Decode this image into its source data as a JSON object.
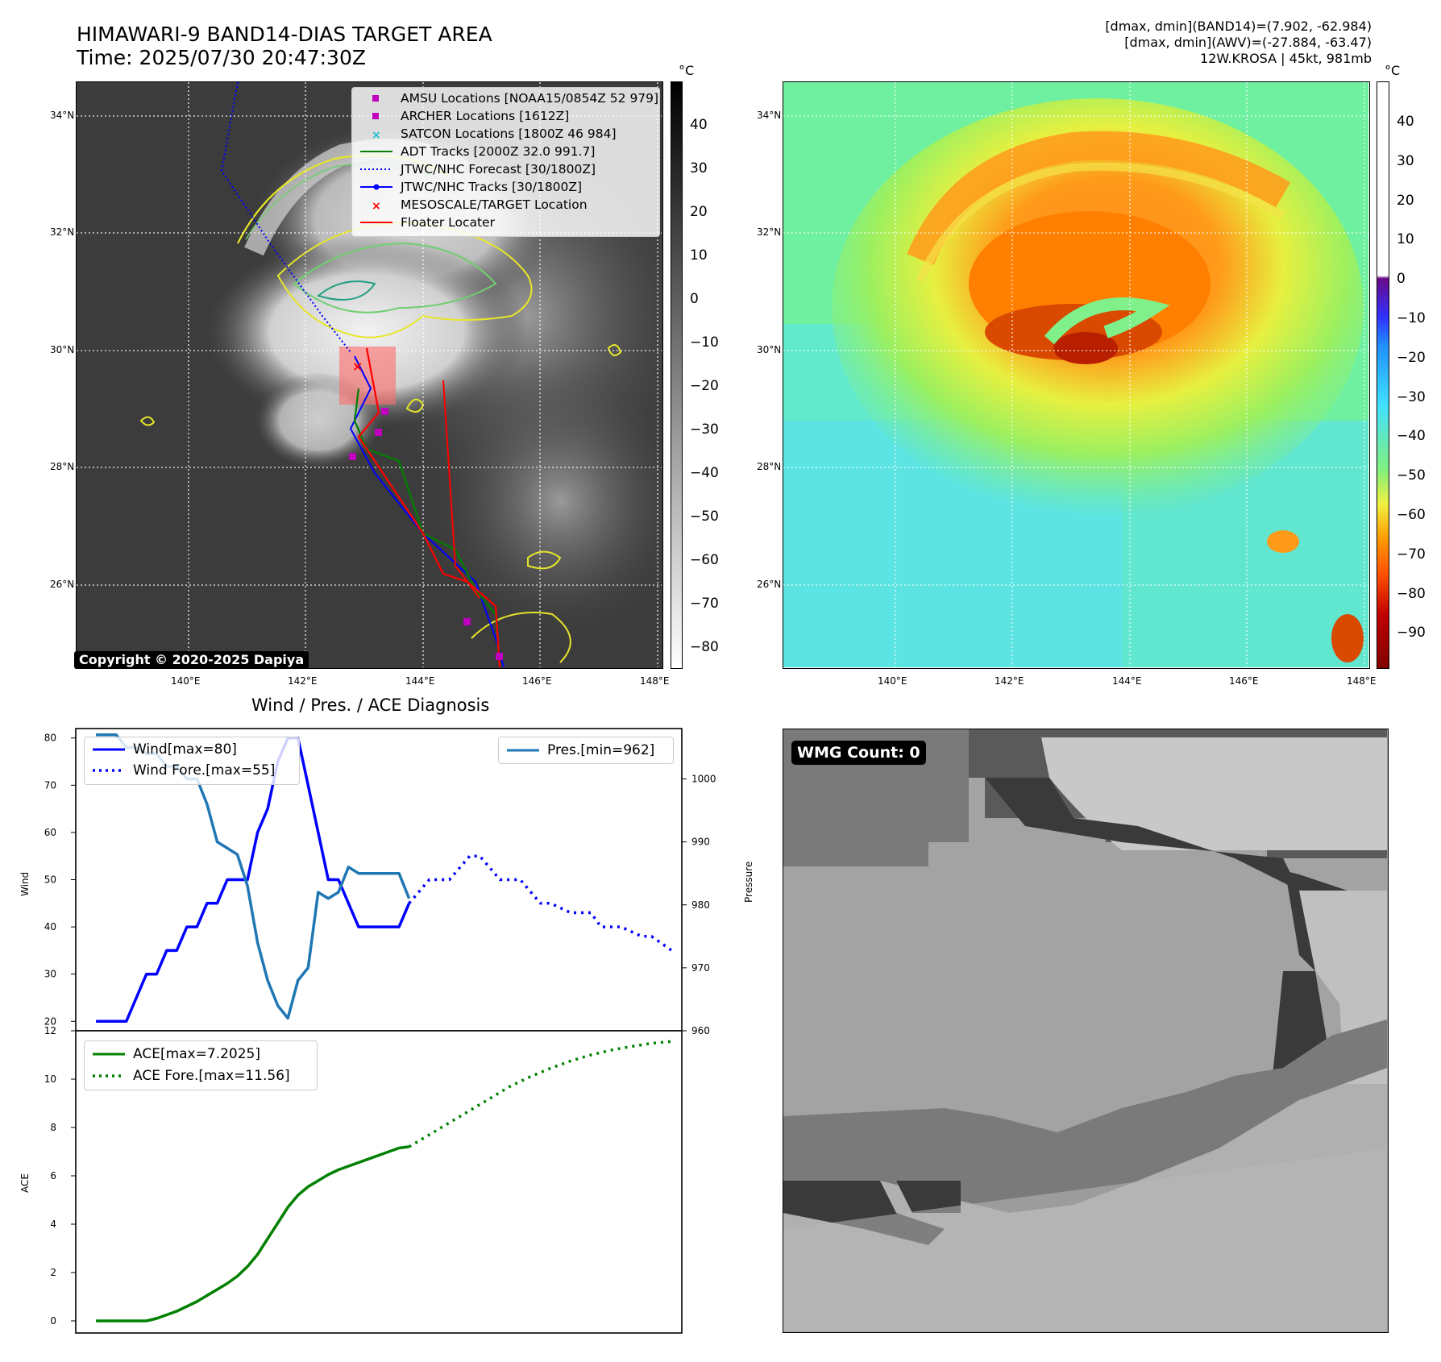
{
  "header": {
    "title_line1": "HIMAWARI-9 BAND14-DIAS TARGET AREA",
    "title_line2": "Time: 2025/07/30 20:47:30Z",
    "info_line1": "[dmax, dmin](BAND14)=(7.902, -62.984)",
    "info_line2": "[dmax, dmin](AWV)=(-27.884, -63.47)",
    "info_line3": "12W.KROSA | 45kt, 981mb"
  },
  "map": {
    "lat_labels": [
      "34°N",
      "32°N",
      "30°N",
      "28°N",
      "26°N"
    ],
    "lon_labels": [
      "140°E",
      "142°E",
      "144°E",
      "146°E",
      "148°E"
    ],
    "copyright": "Copyright © 2020-2025 Dapiya",
    "legend": [
      {
        "label": "AMSU Locations [NOAA15/0854Z 52 979]",
        "symbol": "square",
        "color": "#bf00bf"
      },
      {
        "label": "ARCHER Locations [1612Z]",
        "symbol": "square",
        "color": "#bf00bf"
      },
      {
        "label": "SATCON Locations [1800Z 46 984]",
        "symbol": "x",
        "color": "#17becf"
      },
      {
        "label": "ADT Tracks [2000Z 32.0 991.7]",
        "symbol": "line",
        "color": "#008000"
      },
      {
        "label": "JTWC/NHC Forecast [30/1800Z]",
        "symbol": "dotted",
        "color": "#0000ff"
      },
      {
        "label": "JTWC/NHC Tracks [30/1800Z]",
        "symbol": "line-dot",
        "color": "#0000ff"
      },
      {
        "label": "MESOSCALE/TARGET Location",
        "symbol": "x",
        "color": "#ff0000"
      },
      {
        "label": "Floater Locater",
        "symbol": "line",
        "color": "#ff0000"
      }
    ]
  },
  "colorbar_gray": {
    "unit": "°C",
    "ticks": [
      "40",
      "30",
      "20",
      "10",
      "0",
      "−10",
      "−20",
      "−30",
      "−40",
      "−50",
      "−60",
      "−70",
      "−80"
    ]
  },
  "colorbar_color": {
    "unit": "°C",
    "ticks": [
      "40",
      "30",
      "20",
      "10",
      "0",
      "−10",
      "−20",
      "−30",
      "−40",
      "−50",
      "−60",
      "−70",
      "−80",
      "−90"
    ]
  },
  "wmg": {
    "label": "WMG Count: 0"
  },
  "chart_data": [
    {
      "type": "line",
      "title": "Wind / Pres. / ACE Diagnosis",
      "ylabel": "Wind",
      "y2label": "Pressure",
      "ylim": [
        18,
        82
      ],
      "y2lim": [
        960,
        1008
      ],
      "yticks": [
        20,
        30,
        40,
        50,
        60,
        70,
        80
      ],
      "y2ticks": [
        960,
        970,
        980,
        990,
        1000
      ],
      "series": [
        {
          "name": "Wind[max=80]",
          "color": "#0000ff",
          "style": "solid",
          "axis": "left",
          "x": [
            0,
            4,
            6,
            8,
            10,
            12,
            14,
            16,
            18,
            20,
            22,
            24,
            26,
            28,
            30,
            31,
            32,
            34,
            36,
            38,
            40,
            42,
            44,
            46,
            48,
            50,
            52,
            54,
            56,
            58,
            60,
            62
          ],
          "y": [
            20,
            20,
            20,
            25,
            30,
            30,
            35,
            35,
            40,
            40,
            45,
            45,
            50,
            50,
            50,
            55,
            60,
            65,
            75,
            80,
            80,
            70,
            60,
            50,
            50,
            45,
            40,
            40,
            40,
            40,
            40,
            45
          ]
        },
        {
          "name": "Wind Fore.[max=55]",
          "color": "#0000ff",
          "style": "dotted",
          "axis": "left",
          "x": [
            62,
            66,
            70,
            74,
            76,
            80,
            84,
            88,
            90,
            94,
            98,
            100,
            104,
            108,
            110,
            114
          ],
          "y": [
            45,
            50,
            50,
            55,
            55,
            50,
            50,
            45,
            45,
            43,
            43,
            40,
            40,
            38,
            38,
            35
          ]
        },
        {
          "name": "Pres.[min=962]",
          "color": "#1f77b4",
          "style": "solid",
          "axis": "right",
          "x": [
            0,
            4,
            6,
            8,
            10,
            12,
            14,
            16,
            18,
            20,
            22,
            24,
            26,
            28,
            30,
            32,
            34,
            36,
            38,
            40,
            42,
            44,
            46,
            48,
            50,
            52,
            54,
            56,
            58,
            60,
            62
          ],
          "y": [
            1007,
            1007,
            1005,
            1005,
            1004,
            1004,
            1002,
            1002,
            1000,
            1000,
            996,
            990,
            989,
            988,
            983,
            974,
            968,
            964,
            962,
            968,
            970,
            982,
            981,
            982,
            986,
            985,
            985,
            985,
            985,
            985,
            981
          ]
        }
      ]
    },
    {
      "type": "line",
      "ylabel": "ACE",
      "ylim": [
        -0.5,
        12
      ],
      "yticks": [
        0,
        2,
        4,
        6,
        8,
        10,
        12
      ],
      "series": [
        {
          "name": "ACE[max=7.2025]",
          "color": "#008000",
          "style": "solid",
          "x": [
            0,
            4,
            6,
            8,
            10,
            12,
            14,
            16,
            18,
            20,
            22,
            24,
            26,
            28,
            30,
            32,
            34,
            36,
            38,
            40,
            42,
            44,
            46,
            48,
            50,
            52,
            54,
            56,
            58,
            60,
            62
          ],
          "y": [
            0,
            0,
            0,
            0,
            0,
            0.1,
            0.25,
            0.4,
            0.6,
            0.8,
            1.05,
            1.3,
            1.55,
            1.85,
            2.25,
            2.75,
            3.4,
            4.05,
            4.7,
            5.2,
            5.55,
            5.8,
            6.05,
            6.25,
            6.4,
            6.55,
            6.7,
            6.85,
            7.0,
            7.15,
            7.2025
          ]
        },
        {
          "name": "ACE Fore.[max=11.56]",
          "color": "#008000",
          "style": "dotted",
          "x": [
            62,
            66,
            70,
            74,
            78,
            82,
            86,
            90,
            94,
            98,
            102,
            106,
            110,
            114
          ],
          "y": [
            7.2025,
            7.7,
            8.2,
            8.7,
            9.2,
            9.7,
            10.1,
            10.45,
            10.75,
            11.0,
            11.2,
            11.35,
            11.48,
            11.56
          ]
        }
      ]
    }
  ]
}
